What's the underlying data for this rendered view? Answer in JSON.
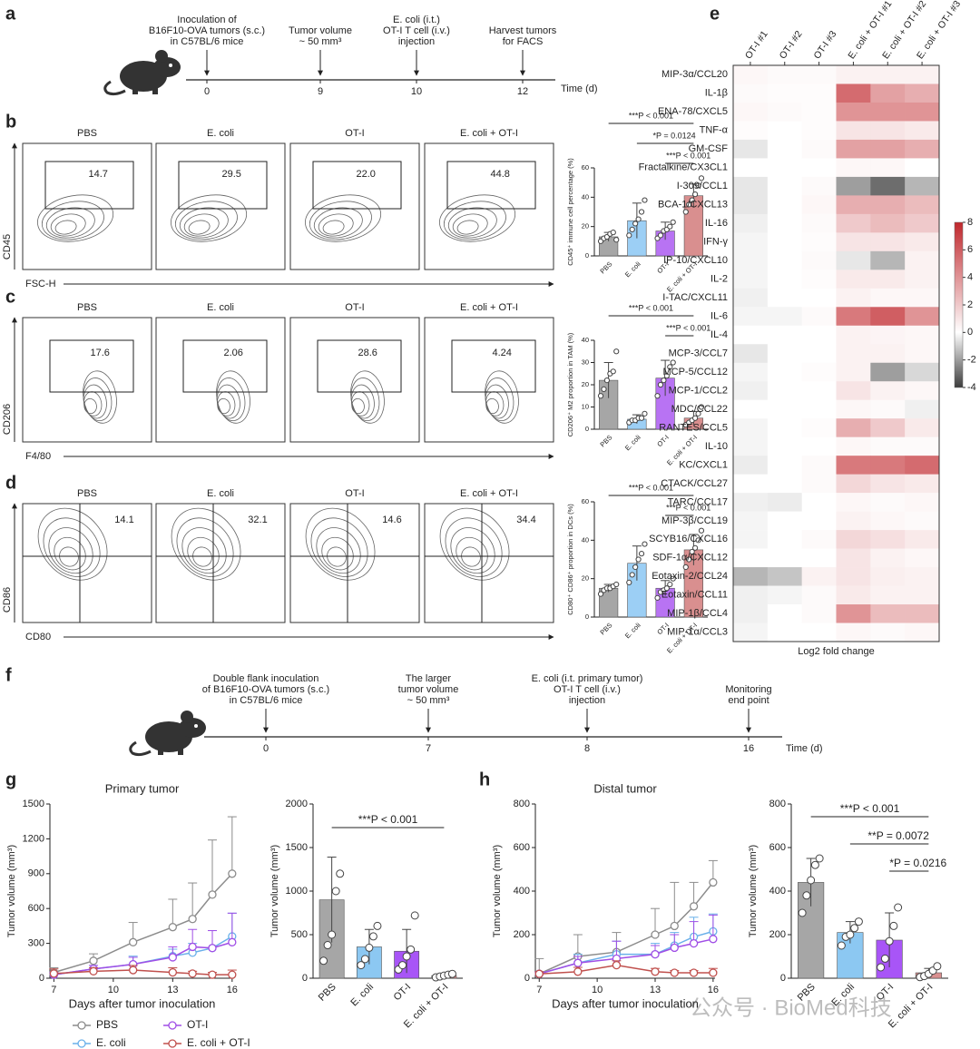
{
  "panel_labels": [
    "a",
    "b",
    "c",
    "d",
    "e",
    "f",
    "g",
    "h"
  ],
  "timelines": [
    {
      "events": [
        {
          "lines": [
            "Inoculation of",
            "B16F10-OVA tumors (s.c.)",
            "in C57BL/6 mice"
          ],
          "day": 0
        },
        {
          "lines": [
            "Tumor volume",
            "~ 50 mm³"
          ],
          "day": 9
        },
        {
          "lines": [
            "E. coli (i.t.)",
            "OT-I T cell (i.v.)",
            "injection"
          ],
          "line_colors": [
            "#3d9be9",
            "#9b30e6",
            "#222222"
          ],
          "day": 10
        },
        {
          "lines": [
            "Harvest tumors",
            "for FACS"
          ],
          "day": 12
        }
      ],
      "axis_label": "Time (d)"
    },
    {
      "events": [
        {
          "lines": [
            "Double flank inoculation",
            "of B16F10-OVA tumors (s.c.)",
            "in C57BL/6 mice"
          ],
          "day": 0
        },
        {
          "lines": [
            "The larger",
            "tumor volume",
            "~ 50 mm³"
          ],
          "day": 7
        },
        {
          "lines": [
            "E. coli (i.t. primary tumor)",
            "OT-I T cell (i.v.)",
            "injection"
          ],
          "line_colors": [
            "#3d9be9",
            "#9b30e6",
            "#222222"
          ],
          "day": 8
        },
        {
          "lines": [
            "Monitoring",
            "end point"
          ],
          "day": 16
        }
      ],
      "axis_label": "Time (d)"
    }
  ],
  "flow": [
    {
      "groups": [
        "PBS",
        "E. coli",
        "OT-I",
        "E. coli + OT-I"
      ],
      "percentages": [
        "14.7",
        "29.5",
        "22.0",
        "44.8"
      ],
      "y_label": "CD45",
      "x_label": "FSC-H",
      "gate": "box"
    },
    {
      "groups": [
        "PBS",
        "E. coli",
        "OT-I",
        "E. coli + OT-I"
      ],
      "percentages": [
        "17.6",
        "2.06",
        "28.6",
        "4.24"
      ],
      "y_label": "CD206",
      "x_label": "F4/80",
      "gate": "box"
    },
    {
      "groups": [
        "PBS",
        "E. coli",
        "OT-I",
        "E. coli + OT-I"
      ],
      "percentages": [
        "14.1",
        "32.1",
        "14.6",
        "34.4"
      ],
      "y_label": "CD86",
      "x_label": "CD80",
      "gate": "quadrant"
    }
  ],
  "chart_data": [
    {
      "type": "bar",
      "y_label": "CD45⁺ immune cell percentage (%)",
      "categories": [
        "PBS",
        "E. coli",
        "OT-I",
        "E. coli + OT-I"
      ],
      "values": [
        13,
        24,
        17,
        41
      ],
      "errors": [
        3,
        12,
        6,
        8
      ],
      "points": [
        [
          10,
          12,
          13,
          15,
          16,
          11
        ],
        [
          14,
          18,
          22,
          25,
          30,
          38
        ],
        [
          12,
          14,
          17,
          18,
          20,
          23
        ],
        [
          30,
          35,
          38,
          42,
          48,
          53
        ]
      ],
      "colors": [
        "#a6a6a6",
        "#9ccff5",
        "#b873f3",
        "#d98f8f"
      ],
      "ylim": [
        0,
        60
      ],
      "yticks": [
        0,
        20,
        40,
        60
      ],
      "annotations": [
        {
          "text": "***P < 0.001",
          "between": [
            "PBS",
            "E. coli + OT-I"
          ]
        },
        {
          "text": "*P = 0.0124",
          "between": [
            "E. coli",
            "E. coli + OT-I"
          ]
        },
        {
          "text": "***P < 0.001",
          "between": [
            "OT-I",
            "E. coli + OT-I"
          ]
        }
      ]
    },
    {
      "type": "bar",
      "y_label": "CD206⁺ M2 proportion in TAM (%)",
      "categories": [
        "PBS",
        "E. coli",
        "OT-I",
        "E. coli + OT-I"
      ],
      "values": [
        22,
        4.5,
        23,
        5
      ],
      "errors": [
        8,
        2,
        8,
        3
      ],
      "points": [
        [
          15,
          18,
          22,
          25,
          26,
          35
        ],
        [
          3,
          4,
          4,
          5,
          5,
          7
        ],
        [
          15,
          20,
          22,
          24,
          28,
          30
        ],
        [
          2,
          3,
          4,
          5,
          7,
          10
        ]
      ],
      "colors": [
        "#a6a6a6",
        "#9ccff5",
        "#b873f3",
        "#d98f8f"
      ],
      "ylim": [
        0,
        40
      ],
      "yticks": [
        0,
        10,
        20,
        30,
        40
      ],
      "annotations": [
        {
          "text": "***P < 0.001",
          "between": [
            "PBS",
            "E. coli + OT-I"
          ]
        },
        {
          "text": "***P < 0.001",
          "between": [
            "OT-I",
            "E. coli + OT-I"
          ]
        }
      ]
    },
    {
      "type": "bar",
      "y_label": "CD80⁺ CD86⁺ proportion in DCs (%)",
      "categories": [
        "PBS",
        "E. coli",
        "OT-I",
        "E. coli + OT-I"
      ],
      "values": [
        15,
        28,
        15,
        35
      ],
      "errors": [
        2,
        9,
        4,
        8
      ],
      "points": [
        [
          12,
          14,
          15,
          15,
          16,
          17
        ],
        [
          18,
          22,
          26,
          30,
          33,
          38
        ],
        [
          10,
          13,
          14,
          15,
          17,
          20
        ],
        [
          26,
          30,
          34,
          36,
          40,
          45
        ]
      ],
      "colors": [
        "#a6a6a6",
        "#9ccff5",
        "#b873f3",
        "#d98f8f"
      ],
      "ylim": [
        0,
        60
      ],
      "yticks": [
        0,
        20,
        40,
        60
      ],
      "annotations": [
        {
          "text": "***P < 0.001",
          "between": [
            "PBS",
            "E. coli + OT-I"
          ]
        },
        {
          "text": "***P < 0.001",
          "between": [
            "OT-I",
            "E. coli + OT-I"
          ]
        }
      ]
    },
    {
      "type": "heatmap",
      "x": [
        "OT-I #1",
        "OT-I #2",
        "OT-I #3",
        "E. coli + OT-I #1",
        "E. coli + OT-I #2",
        "E. coli + OT-I #3"
      ],
      "y": [
        "MIP-3α/CCL20",
        "IL-1β",
        "ENA-78/CXCL5",
        "TNF-α",
        "GM-CSF",
        "Fractalkine/CX3CL1",
        "I-309/CCL1",
        "BCA-1/CXCL13",
        "IL-16",
        "IFN-γ",
        "IP-10/CXCL10",
        "IL-2",
        "I-TAC/CXCL11",
        "IL-6",
        "IL-4",
        "MCP-3/CCL7",
        "MCP-5/CCL12",
        "MCP-1/CCL2",
        "MDC/CCL22",
        "RANTES/CCL5",
        "IL-10",
        "KC/CXCL1",
        "CTACK/CCL27",
        "TARC/CCL17",
        "MIP-3β/CCL19",
        "SCYB16/CXCL16",
        "SDF-1α/CXCL12",
        "Eotaxin-2/CCL24",
        "Eotaxin/CCL11",
        "MIP-1β/CCL4",
        "MIP-1α/CCL3"
      ],
      "values": [
        [
          0.3,
          0.2,
          0.2,
          0.5,
          0.5,
          0.5
        ],
        [
          0.2,
          0.1,
          0.1,
          5.5,
          3.5,
          3
        ],
        [
          0.3,
          0.2,
          0.1,
          4,
          4,
          4
        ],
        [
          0.1,
          0,
          0.1,
          1,
          1,
          0.8
        ],
        [
          -0.5,
          0,
          0.2,
          3.5,
          3.5,
          3
        ],
        [
          0,
          0,
          0,
          0.3,
          0.3,
          0
        ],
        [
          -0.5,
          0,
          0.2,
          -2,
          -3,
          -1.5
        ],
        [
          -0.5,
          0,
          0.3,
          3,
          3,
          2.5
        ],
        [
          -0.3,
          0,
          0.2,
          2,
          2.5,
          2
        ],
        [
          -0.2,
          0,
          0.1,
          1,
          1,
          0.8
        ],
        [
          -0.2,
          0,
          0.2,
          -0.5,
          -1.5,
          0.5
        ],
        [
          -0.2,
          0,
          0.1,
          0.8,
          0.8,
          0.5
        ],
        [
          -0.3,
          0,
          0,
          0.5,
          0.3,
          0.3
        ],
        [
          -0.2,
          -0.2,
          0.2,
          5,
          6,
          4
        ],
        [
          0,
          0,
          0,
          0.5,
          0.4,
          0.3
        ],
        [
          -0.5,
          0,
          0,
          0.5,
          0.5,
          0.3
        ],
        [
          -0.2,
          0,
          0.1,
          0.5,
          -2,
          -0.8
        ],
        [
          -0.3,
          0,
          0,
          1,
          0.5,
          0.3
        ],
        [
          0,
          0,
          0,
          0.3,
          0.2,
          -0.3
        ],
        [
          -0.2,
          0,
          0.1,
          3,
          2,
          0.8
        ],
        [
          -0.2,
          0,
          0,
          0.3,
          0.2,
          0.2
        ],
        [
          -0.4,
          0,
          0.2,
          5,
          5,
          5.5
        ],
        [
          0,
          0,
          0.2,
          1.5,
          1,
          0.8
        ],
        [
          -0.3,
          -0.4,
          0,
          0.3,
          0.2,
          0.3
        ],
        [
          -0.2,
          0,
          0,
          0.5,
          0.3,
          0.2
        ],
        [
          -0.2,
          0,
          0.2,
          1.5,
          1.2,
          0.8
        ],
        [
          0,
          0,
          0,
          1,
          0.5,
          0.3
        ],
        [
          -1.5,
          -1.2,
          0.5,
          1,
          0.6,
          0.5
        ],
        [
          -0.3,
          -0.2,
          0.2,
          0.8,
          0.5,
          0.5
        ],
        [
          -0.3,
          0,
          0.2,
          4,
          2.5,
          2.5
        ],
        [
          -0.2,
          0,
          0,
          0.3,
          0.2,
          0.3
        ]
      ],
      "zlim": [
        -4,
        8
      ],
      "zticks": [
        -4,
        -2,
        0,
        2,
        4,
        6,
        8
      ],
      "colormap": [
        "#3c3c3c",
        "#ffffff",
        "#c0282d"
      ],
      "x_label": "Log2 fold change"
    },
    {
      "type": "line",
      "title": "Primary tumor",
      "x_label": "Days after tumor inoculation",
      "y_label": "Tumor volume (mm³)",
      "x": [
        7,
        9,
        11,
        13,
        14,
        15,
        16
      ],
      "xlim": [
        6.8,
        16.1
      ],
      "xticks": [
        7,
        10,
        13,
        16
      ],
      "ylim": [
        0,
        1500
      ],
      "yticks": [
        0,
        300,
        600,
        900,
        1200,
        1500
      ],
      "legend": "below",
      "series": [
        {
          "name": "PBS",
          "color": "#8c8c8c",
          "values": [
            50,
            150,
            310,
            440,
            510,
            720,
            900
          ],
          "errors": [
            40,
            60,
            170,
            240,
            310,
            470,
            490
          ]
        },
        {
          "name": "E. coli",
          "color": "#6ab0ea",
          "values": [
            30,
            80,
            120,
            190,
            220,
            260,
            360
          ],
          "errors": [
            20,
            30,
            70,
            60,
            80,
            150,
            200
          ]
        },
        {
          "name": "OT-I",
          "color": "#a04ee6",
          "values": [
            30,
            80,
            120,
            180,
            270,
            260,
            310
          ],
          "errors": [
            20,
            30,
            60,
            90,
            150,
            150,
            250
          ]
        },
        {
          "name": "E. coli + OT-I",
          "color": "#c0504d",
          "values": [
            40,
            60,
            70,
            50,
            40,
            30,
            30
          ],
          "errors": [
            40,
            30,
            40,
            40,
            20,
            20,
            40
          ]
        }
      ]
    },
    {
      "type": "bar",
      "y_label": "Tumor volume (mm³)",
      "categories": [
        "PBS",
        "E. coli",
        "OT-I",
        "E. coli + OT-I"
      ],
      "values": [
        900,
        360,
        310,
        30
      ],
      "errors": [
        490,
        200,
        250,
        20
      ],
      "points": [
        [
          200,
          380,
          500,
          1000,
          1200
        ],
        [
          150,
          220,
          350,
          480,
          600
        ],
        [
          100,
          150,
          250,
          330,
          720
        ],
        [
          10,
          20,
          30,
          40,
          50
        ]
      ],
      "colors": [
        "#a6a6a6",
        "#8cc8f2",
        "#a855f7",
        "#d98f8f"
      ],
      "ylim": [
        0,
        2000
      ],
      "yticks": [
        0,
        500,
        1000,
        1500,
        2000
      ],
      "annotations": [
        {
          "text": "***P < 0.001",
          "between": [
            "PBS",
            "E. coli + OT-I"
          ]
        }
      ]
    },
    {
      "type": "line",
      "title": "Distal tumor",
      "x_label": "Days after tumor inoculation",
      "y_label": "Tumor volume (mm³)",
      "x": [
        7,
        9,
        11,
        13,
        14,
        15,
        16
      ],
      "xlim": [
        6.8,
        16.1
      ],
      "xticks": [
        7,
        10,
        13,
        16
      ],
      "ylim": [
        0,
        800
      ],
      "yticks": [
        0,
        200,
        400,
        600,
        800
      ],
      "series": [
        {
          "name": "PBS",
          "color": "#8c8c8c",
          "values": [
            20,
            100,
            120,
            200,
            240,
            330,
            440
          ],
          "errors": [
            70,
            100,
            90,
            120,
            200,
            110,
            100
          ]
        },
        {
          "name": "E. coli",
          "color": "#6ab0ea",
          "values": [
            20,
            70,
            110,
            110,
            150,
            190,
            215
          ],
          "errors": [
            10,
            40,
            60,
            50,
            60,
            90,
            80
          ]
        },
        {
          "name": "OT-I",
          "color": "#a04ee6",
          "values": [
            20,
            70,
            90,
            110,
            140,
            160,
            180
          ],
          "errors": [
            10,
            30,
            80,
            40,
            60,
            100,
            110
          ]
        },
        {
          "name": "E. coli + OT-I",
          "color": "#c0504d",
          "values": [
            20,
            30,
            60,
            30,
            25,
            25,
            25
          ],
          "errors": [
            10,
            20,
            20,
            15,
            10,
            10,
            20
          ]
        }
      ]
    },
    {
      "type": "bar",
      "y_label": "Tumor volume (mm³)",
      "categories": [
        "PBS",
        "E. coli",
        "OT-I",
        "E. coli + OT-I"
      ],
      "values": [
        440,
        210,
        175,
        25
      ],
      "errors": [
        110,
        50,
        125,
        20
      ],
      "points": [
        [
          300,
          380,
          450,
          520,
          550
        ],
        [
          150,
          190,
          200,
          230,
          260
        ],
        [
          50,
          90,
          170,
          240,
          325
        ],
        [
          5,
          10,
          20,
          35,
          55
        ]
      ],
      "colors": [
        "#a6a6a6",
        "#8cc8f2",
        "#a855f7",
        "#d98f8f"
      ],
      "ylim": [
        0,
        800
      ],
      "yticks": [
        0,
        200,
        400,
        600,
        800
      ],
      "annotations": [
        {
          "text": "***P < 0.001",
          "between": [
            "PBS",
            "E. coli + OT-I"
          ]
        },
        {
          "text": "**P = 0.0072",
          "between": [
            "E. coli",
            "E. coli + OT-I"
          ]
        },
        {
          "text": "*P = 0.0216",
          "between": [
            "OT-I",
            "E. coli + OT-I"
          ]
        }
      ]
    }
  ],
  "watermark": "公众号 · BioMed科技"
}
